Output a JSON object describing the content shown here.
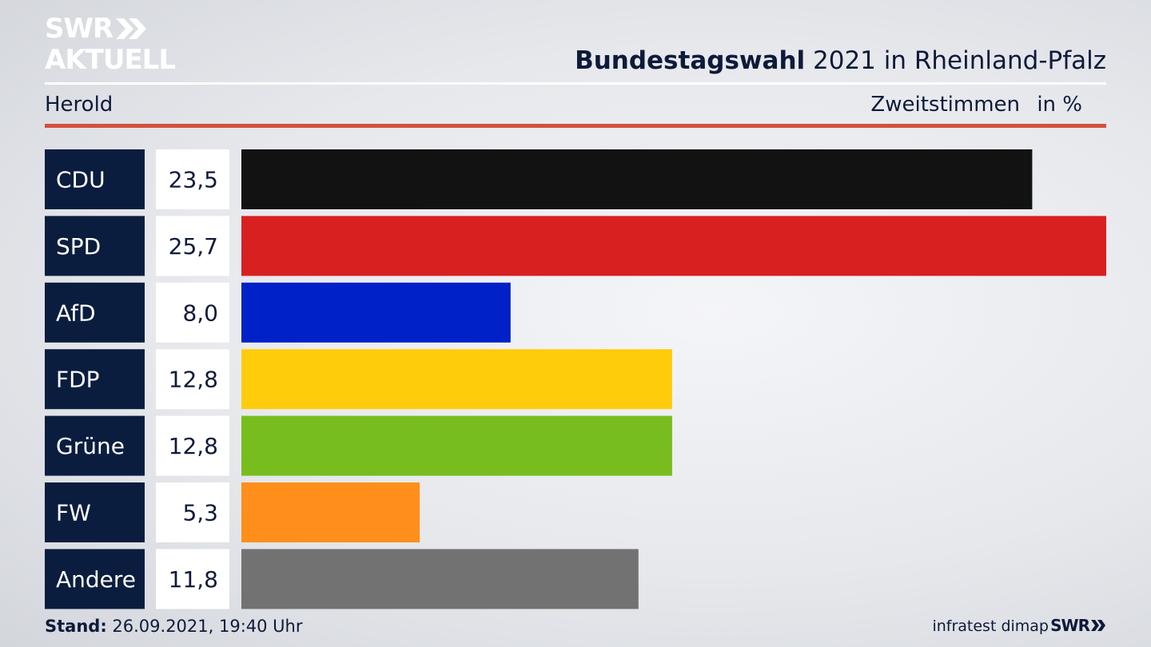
{
  "header": {
    "logo_line1": "SWR",
    "logo_line2": "AKTUELL",
    "title_bold": "Bundestagswahl",
    "title_rest": " 2021 in Rheinland-Pfalz",
    "region": "Herold",
    "metric": "Zweitstimmen",
    "unit": "in %"
  },
  "footer": {
    "stand_label": "Stand:",
    "stand_value": " 26.09.2021, 19:40 Uhr",
    "source": "infratest dimap",
    "logo": "SWR"
  },
  "chart_data": {
    "type": "bar",
    "orientation": "horizontal",
    "title": "Bundestagswahl 2021 in Rheinland-Pfalz",
    "categories": [
      "CDU",
      "SPD",
      "AfD",
      "FDP",
      "Grüne",
      "FW",
      "Andere"
    ],
    "values": [
      23.5,
      25.7,
      8.0,
      12.8,
      12.8,
      5.3,
      11.8
    ],
    "value_labels": [
      "23,5",
      "25,7",
      "8,0",
      "12,8",
      "12,8",
      "5,3",
      "11,8"
    ],
    "colors": [
      "#121212",
      "#d82020",
      "#0021c8",
      "#ffcc0b",
      "#78bd1e",
      "#ff8f1a",
      "#727272"
    ],
    "xlim": [
      0,
      25.7
    ],
    "grid": false,
    "legend": "none"
  }
}
